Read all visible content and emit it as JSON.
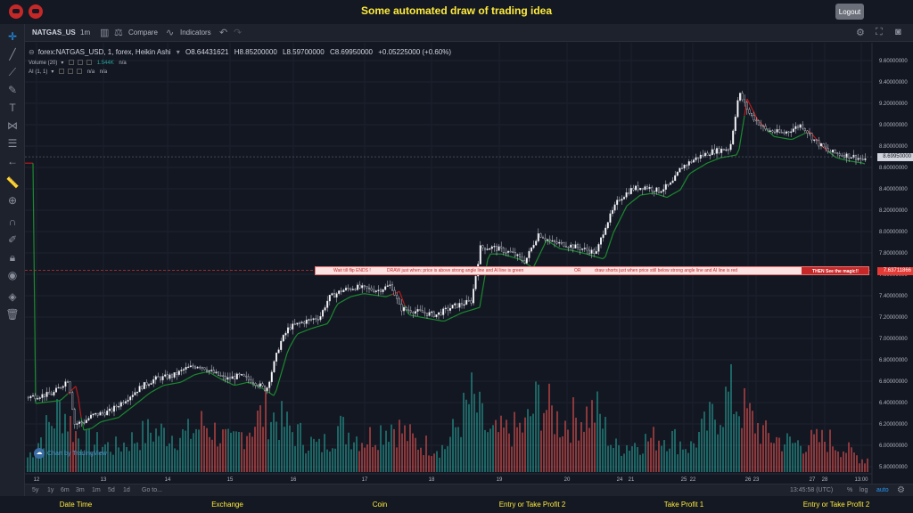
{
  "header": {
    "title": "Some automated draw of trading idea",
    "logout_label": "Logout"
  },
  "toolbar": {
    "symbol": "NATGAS_US",
    "interval": "1m",
    "compare_label": "Compare",
    "indicators_label": "Indicators"
  },
  "legend": {
    "main": "forex:NATGAS_USD, 1, forex, Heikin Ashi",
    "open": "O8.64431621",
    "high": "H8.85200000",
    "low": "L8.59700000",
    "close": "C8.69950000",
    "change": "+0.05225000 (+0.60%)",
    "volume_label": "Volume (20)",
    "volume_value": "1.544K",
    "volume_na": "n/a",
    "ai_label": "AI (1, 1)",
    "ai_na1": "n/a",
    "ai_na2": "n/a"
  },
  "price_axis": {
    "ticks": [
      "9.60000000",
      "9.40000000",
      "9.20000000",
      "9.00000000",
      "8.80000000",
      "8.60000000",
      "8.40000000",
      "8.20000000",
      "8.00000000",
      "7.80000000",
      "7.60000000",
      "7.40000000",
      "7.20000000",
      "7.00000000",
      "6.80000000",
      "6.60000000",
      "6.40000000",
      "6.20000000",
      "6.00000000",
      "5.80000000"
    ],
    "current_price": "8.69950000",
    "line_price": "7.63711866"
  },
  "time_axis": {
    "labels": [
      "12",
      "13",
      "14",
      "15",
      "16",
      "17",
      "18",
      "19",
      "20",
      "21",
      "22",
      "23",
      "24",
      "25",
      "26",
      "27",
      "28",
      "13:00"
    ]
  },
  "banner": {
    "part1": "Wait till flip ENDS !",
    "part2": "DRAW just when:  price is above strong angle line and AI line is green",
    "part3": "OR",
    "part4": "draw shorts just when price still below strong angle line and AI line is red",
    "magic": "THEN See the magic!!"
  },
  "watermark": "Chart by TradingView",
  "range_bar": {
    "ranges": [
      "5y",
      "1y",
      "6m",
      "3m",
      "1m",
      "5d",
      "1d"
    ],
    "goto_label": "Go to...",
    "clock": "13:45:58 (UTC)",
    "percent_label": "%",
    "log_label": "log",
    "auto_label": "auto"
  },
  "footer": {
    "columns": [
      "Date Time",
      "Exchange",
      "Coin",
      "Entry or Take Profit 2",
      "Take Profit 1",
      "Entry or Take Profit 2"
    ]
  },
  "colors": {
    "bull": "#26a69a",
    "bear": "#ef5350",
    "accent_yellow": "#ffeb3b",
    "signal_red": "#e53935"
  },
  "chart_data": {
    "type": "candlestick",
    "ylim": [
      5.75,
      9.7
    ],
    "price_path": [
      [
        0,
        6.45
      ],
      [
        30,
        6.48
      ],
      [
        48,
        6.62
      ],
      [
        55,
        6.2
      ],
      [
        65,
        6.22
      ],
      [
        75,
        6.28
      ],
      [
        95,
        6.32
      ],
      [
        115,
        6.45
      ],
      [
        130,
        6.55
      ],
      [
        145,
        6.62
      ],
      [
        165,
        6.65
      ],
      [
        180,
        6.72
      ],
      [
        195,
        6.75
      ],
      [
        210,
        6.68
      ],
      [
        225,
        6.62
      ],
      [
        240,
        6.65
      ],
      [
        255,
        6.6
      ],
      [
        270,
        6.52
      ],
      [
        285,
        6.95
      ],
      [
        295,
        7.1
      ],
      [
        310,
        7.15
      ],
      [
        330,
        7.2
      ],
      [
        340,
        7.38
      ],
      [
        355,
        7.45
      ],
      [
        370,
        7.48
      ],
      [
        395,
        7.45
      ],
      [
        410,
        7.5
      ],
      [
        420,
        7.28
      ],
      [
        440,
        7.25
      ],
      [
        460,
        7.22
      ],
      [
        480,
        7.3
      ],
      [
        500,
        7.35
      ],
      [
        510,
        7.85
      ],
      [
        525,
        7.85
      ],
      [
        545,
        7.8
      ],
      [
        560,
        7.72
      ],
      [
        575,
        7.98
      ],
      [
        590,
        7.9
      ],
      [
        605,
        7.88
      ],
      [
        620,
        7.85
      ],
      [
        640,
        7.8
      ],
      [
        650,
        8.05
      ],
      [
        665,
        8.3
      ],
      [
        680,
        8.4
      ],
      [
        695,
        8.42
      ],
      [
        710,
        8.38
      ],
      [
        725,
        8.45
      ],
      [
        735,
        8.6
      ],
      [
        755,
        8.7
      ],
      [
        770,
        8.75
      ],
      [
        790,
        8.78
      ],
      [
        800,
        9.3
      ],
      [
        812,
        9.1
      ],
      [
        830,
        8.95
      ],
      [
        850,
        8.92
      ],
      [
        870,
        9.0
      ],
      [
        885,
        8.85
      ],
      [
        900,
        8.75
      ],
      [
        915,
        8.72
      ],
      [
        930,
        8.7
      ],
      [
        945,
        8.65
      ],
      [
        955,
        8.7
      ]
    ],
    "volume_profile": [
      [
        0,
        0.15
      ],
      [
        40,
        0.8
      ],
      [
        60,
        0.4
      ],
      [
        100,
        0.3
      ],
      [
        140,
        0.5
      ],
      [
        180,
        0.45
      ],
      [
        200,
        0.6
      ],
      [
        230,
        0.35
      ],
      [
        270,
        0.75
      ],
      [
        300,
        0.5
      ],
      [
        330,
        0.3
      ],
      [
        350,
        0.55
      ],
      [
        380,
        0.4
      ],
      [
        410,
        0.6
      ],
      [
        440,
        0.35
      ],
      [
        470,
        0.3
      ],
      [
        500,
        0.9
      ],
      [
        520,
        0.45
      ],
      [
        560,
        0.55
      ],
      [
        575,
        0.9
      ],
      [
        600,
        0.6
      ],
      [
        640,
        0.75
      ],
      [
        660,
        0.3
      ],
      [
        700,
        0.4
      ],
      [
        720,
        0.45
      ],
      [
        745,
        0.3
      ],
      [
        790,
        0.95
      ],
      [
        810,
        0.7
      ],
      [
        830,
        0.45
      ],
      [
        860,
        0.35
      ],
      [
        900,
        0.4
      ],
      [
        940,
        0.15
      ],
      [
        960,
        0.25
      ]
    ]
  }
}
